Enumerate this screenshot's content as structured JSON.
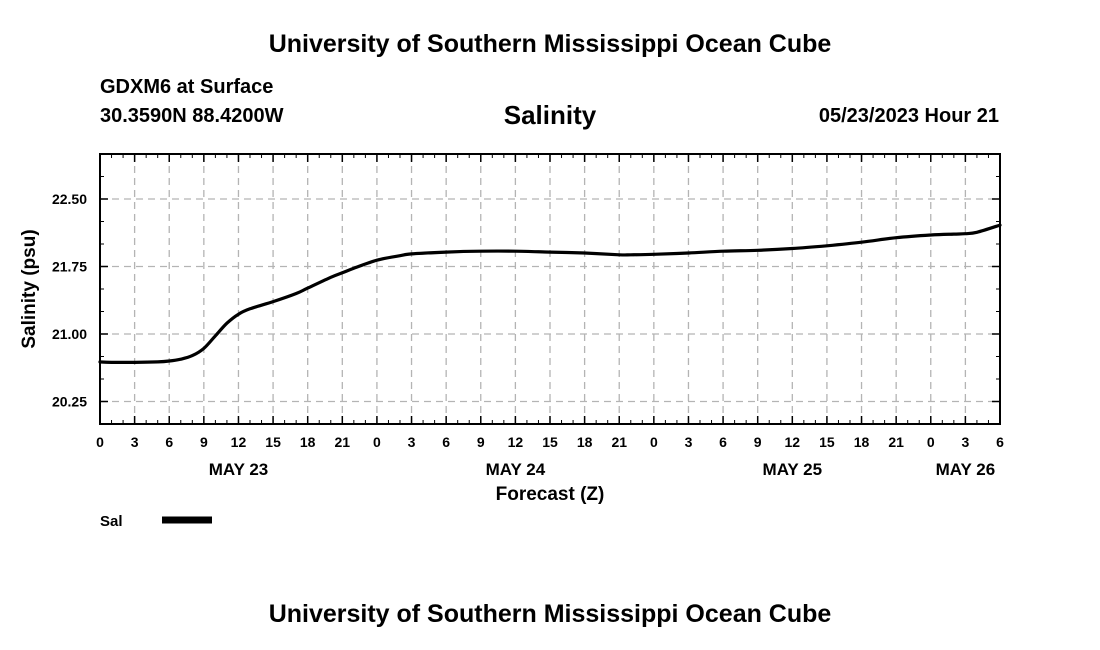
{
  "header": {
    "title": "University of Southern Mississippi Ocean Cube",
    "station": "GDXM6 at Surface",
    "coords": "30.3590N  88.4200W",
    "timestamp": "05/23/2023 Hour 21"
  },
  "footer": {
    "title": "University of Southern Mississippi Ocean Cube"
  },
  "chart_data": {
    "type": "line",
    "title": "Salinity",
    "xlabel": "Forecast (Z)",
    "ylabel": "Salinity (psu)",
    "x_unit": "hours from 00Z May 23",
    "xlim": [
      0,
      78
    ],
    "ylim": [
      20.0,
      23.0
    ],
    "yticks": [
      20.25,
      21.0,
      21.75,
      22.5
    ],
    "ytick_labels": [
      "20.25",
      "21.00",
      "21.75",
      "22.50"
    ],
    "xtick_labels": [
      "0",
      "3",
      "6",
      "9",
      "12",
      "15",
      "18",
      "21",
      "0",
      "3",
      "6",
      "9",
      "12",
      "15",
      "18",
      "21",
      "0",
      "3",
      "6",
      "9",
      "12",
      "15",
      "18",
      "21",
      "0",
      "3",
      "6"
    ],
    "date_labels": [
      {
        "label": "MAY 23",
        "hour": 12
      },
      {
        "label": "MAY 24",
        "hour": 36
      },
      {
        "label": "MAY 25",
        "hour": 60
      },
      {
        "label": "MAY 26",
        "hour": 75
      }
    ],
    "grid": true,
    "legend": "bottom-left",
    "series": [
      {
        "name": "Sal",
        "color": "#000000",
        "x": [
          0,
          1,
          3,
          5,
          6,
          7,
          8,
          9,
          10,
          11,
          12,
          13,
          15,
          17,
          18,
          20,
          21,
          22,
          24,
          26,
          27,
          30,
          33,
          36,
          39,
          42,
          45,
          46,
          48,
          51,
          54,
          57,
          60,
          63,
          66,
          69,
          72,
          74,
          75,
          76,
          78
        ],
        "y": [
          20.69,
          20.685,
          20.685,
          20.69,
          20.7,
          20.72,
          20.76,
          20.84,
          20.98,
          21.12,
          21.22,
          21.28,
          21.36,
          21.45,
          21.51,
          21.63,
          21.68,
          21.73,
          21.82,
          21.87,
          21.89,
          21.91,
          21.92,
          21.92,
          21.91,
          21.9,
          21.88,
          21.88,
          21.885,
          21.9,
          21.92,
          21.93,
          21.95,
          21.98,
          22.02,
          22.07,
          22.1,
          22.11,
          22.115,
          22.13,
          22.21
        ]
      }
    ]
  }
}
